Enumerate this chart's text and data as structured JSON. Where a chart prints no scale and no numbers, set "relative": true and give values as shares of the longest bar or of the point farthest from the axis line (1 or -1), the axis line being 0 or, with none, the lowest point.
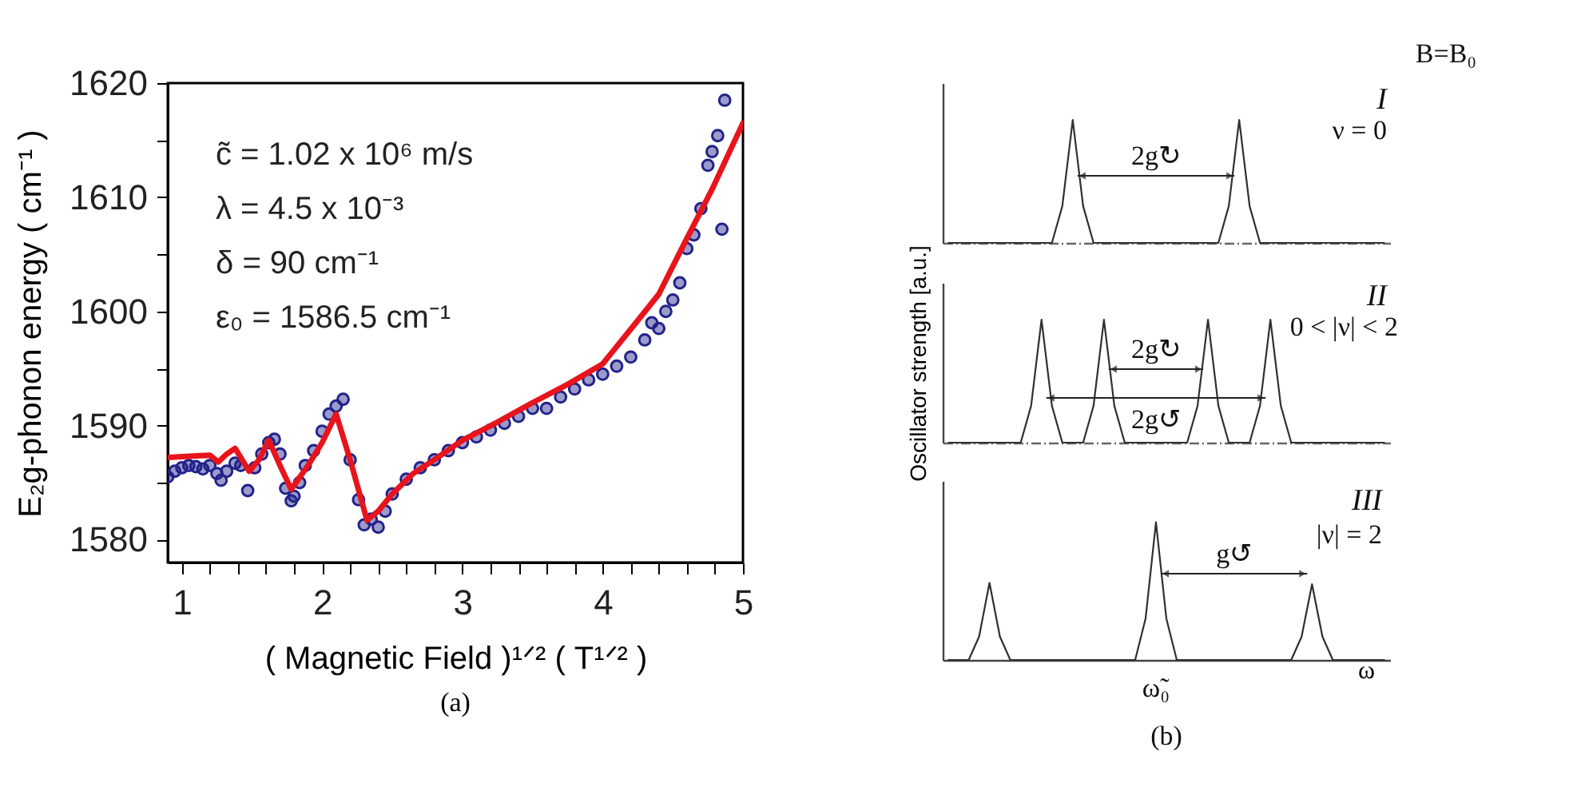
{
  "chart_data": [
    {
      "type": "scatter",
      "xlabel": "( Magnetic Field )¹ᐟ²  ( T¹ᐟ² )",
      "ylabel": "E₂g-phonon energy  ( cm⁻¹ )",
      "xlim": [
        0.9,
        5
      ],
      "ylim": [
        1578,
        1620
      ],
      "xticks": [
        1,
        {
          "value": 1.2,
          "label": null
        },
        {
          "value": 1.4,
          "label": null
        },
        {
          "value": 1.6,
          "label": null
        },
        {
          "value": 1.8,
          "label": null
        },
        2,
        {
          "value": 2.2,
          "label": null
        },
        {
          "value": 2.4,
          "label": null
        },
        {
          "value": 2.6,
          "label": null
        },
        {
          "value": 2.8,
          "label": null
        },
        3,
        {
          "value": 3.2,
          "label": null
        },
        {
          "value": 3.4,
          "label": null
        },
        {
          "value": 3.6,
          "label": null
        },
        {
          "value": 3.8,
          "label": null
        },
        4,
        {
          "value": 4.2,
          "label": null
        },
        {
          "value": 4.4,
          "label": null
        },
        {
          "value": 4.6,
          "label": null
        },
        {
          "value": 4.8,
          "label": null
        },
        5
      ],
      "yticks": [
        1580,
        {
          "value": 1585,
          "label": null
        },
        1590,
        {
          "value": 1595,
          "label": null
        },
        1600,
        {
          "value": 1605,
          "label": null
        },
        1610,
        {
          "value": 1615,
          "label": null
        },
        1620
      ],
      "grid": false,
      "series": [
        {
          "type": "scatter",
          "color": "#22228a",
          "marker": "circle",
          "x": [
            0.9,
            0.95,
            1.0,
            1.05,
            1.1,
            1.15,
            1.2,
            1.25,
            1.28,
            1.32,
            1.38,
            1.42,
            1.47,
            1.52,
            1.57,
            1.62,
            1.66,
            1.7,
            1.74,
            1.78,
            1.8,
            1.84,
            1.88,
            1.94,
            2.0,
            2.05,
            2.1,
            2.15,
            2.2,
            2.26,
            2.3,
            2.35,
            2.4,
            2.45,
            2.5,
            2.6,
            2.7,
            2.8,
            2.9,
            3.0,
            3.1,
            3.2,
            3.3,
            3.4,
            3.5,
            3.6,
            3.7,
            3.8,
            3.9,
            4.0,
            4.1,
            4.2,
            4.3,
            4.35,
            4.4,
            4.45,
            4.5,
            4.55,
            4.6,
            4.65,
            4.7,
            4.75,
            4.78,
            4.82,
            4.85,
            4.87
          ],
          "values": [
            1585.5,
            1586,
            1586.3,
            1586.5,
            1586.4,
            1586.2,
            1586.5,
            1585.8,
            1585.2,
            1586,
            1586.7,
            1586.5,
            1584.3,
            1586.3,
            1587.5,
            1588.5,
            1588.8,
            1587.5,
            1584.5,
            1583.4,
            1583.8,
            1585,
            1586.5,
            1587.8,
            1589.5,
            1591,
            1591.7,
            1592.3,
            1587,
            1583.5,
            1581.3,
            1581.8,
            1581.1,
            1582.5,
            1584,
            1585.3,
            1586.3,
            1587,
            1587.8,
            1588.5,
            1589,
            1589.6,
            1590.2,
            1590.8,
            1591.5,
            1591.5,
            1592.5,
            1593.2,
            1594,
            1594.5,
            1595.2,
            1596,
            1597.5,
            1599,
            1598.5,
            1600,
            1601,
            1602.5,
            1605.5,
            1606.7,
            1609,
            1612.8,
            1614,
            1615.4,
            1607.2,
            1618.5
          ]
        },
        {
          "type": "line",
          "color": "#e8141c",
          "x": [
            0.9,
            1.2,
            1.26,
            1.32,
            1.38,
            1.48,
            1.55,
            1.62,
            1.7,
            1.78,
            1.9,
            2.0,
            2.1,
            2.2,
            2.32,
            2.4,
            2.5,
            2.65,
            2.8,
            3.0,
            3.25,
            3.5,
            3.75,
            4.0,
            4.23,
            4.4,
            4.58,
            4.78,
            5.0
          ],
          "values": [
            1587.2,
            1587.4,
            1586.8,
            1587.5,
            1588,
            1586,
            1587,
            1588.7,
            1586.5,
            1584.4,
            1586.5,
            1588.5,
            1591,
            1587,
            1581.7,
            1582.5,
            1584,
            1585.8,
            1587,
            1588.7,
            1590.3,
            1592,
            1593.6,
            1595.4,
            1598.9,
            1601.5,
            1605.9,
            1610.7,
            1616.5
          ]
        }
      ],
      "annotations": [
        "c̃ = 1.02 x 10⁶ m/s",
        "λ = 4.5 x 10⁻³",
        "δ = 90 cm⁻¹",
        "ε₀ = 1586.5 cm⁻¹",
        "(a)"
      ]
    },
    {
      "type": "line",
      "relative": true,
      "grid": false,
      "categories": [
        null,
        null,
        null,
        null,
        null,
        null,
        null,
        null,
        null,
        null,
        null,
        null,
        null,
        null,
        null,
        null,
        null,
        null,
        null,
        null,
        null,
        null,
        null,
        null,
        null,
        null,
        null,
        null,
        null,
        null,
        null,
        null,
        null,
        null,
        null,
        null,
        null,
        null,
        null,
        null,
        null,
        null,
        null
      ],
      "series": [
        {
          "color": "#303030",
          "values": [
            0,
            0,
            0,
            0,
            0,
            0,
            0,
            0,
            0,
            0,
            0,
            0.3,
            1,
            0.3,
            0,
            0,
            0,
            0,
            0,
            0,
            0,
            0,
            0,
            0,
            0,
            0,
            0,
            0.3,
            1,
            0.3,
            0,
            0,
            0,
            0,
            0,
            0,
            0,
            0,
            0,
            0,
            0,
            0,
            0
          ]
        }
      ],
      "annotations": [
        "I",
        "ν = 0",
        "2g↻",
        "B=B₀"
      ]
    },
    {
      "type": "line",
      "relative": true,
      "grid": false,
      "ylabel": "Oscillator strength [a.u.]",
      "categories": [
        null,
        null,
        null,
        null,
        null,
        null,
        null,
        null,
        null,
        null,
        null,
        null,
        null,
        null,
        null,
        null,
        null,
        null,
        null,
        null,
        null,
        null,
        null,
        null,
        null,
        null,
        null,
        null,
        null,
        null,
        null,
        null,
        null,
        null,
        null,
        null,
        null,
        null,
        null,
        null,
        null,
        null,
        null
      ],
      "series": [
        {
          "color": "#303030",
          "values": [
            0,
            0,
            0,
            0,
            0,
            0,
            0,
            0,
            0.3,
            1,
            0.3,
            0,
            0,
            0,
            0.3,
            1,
            0.3,
            0,
            0,
            0,
            0,
            0,
            0,
            0,
            0.3,
            1,
            0.3,
            0,
            0,
            0,
            0.3,
            1,
            0.3,
            0,
            0,
            0,
            0,
            0,
            0,
            0,
            0,
            0,
            0
          ]
        }
      ],
      "annotations": [
        "II",
        "0 < |ν| < 2",
        "2g↻",
        "2g↺"
      ]
    },
    {
      "type": "line",
      "relative": true,
      "grid": false,
      "xlabel": "ω",
      "categories": [
        null,
        null,
        null,
        null,
        null,
        null,
        null,
        null,
        null,
        null,
        null,
        null,
        null,
        null,
        null,
        null,
        null,
        null,
        null,
        null,
        null,
        null,
        null,
        null,
        null,
        null,
        null,
        null,
        null,
        null,
        null,
        null,
        null,
        null,
        null,
        null,
        null,
        null,
        null,
        null,
        null,
        null,
        null
      ],
      "series": [
        {
          "color": "#303030",
          "values": [
            0,
            0,
            0,
            0.17,
            0.56,
            0.17,
            0,
            0,
            0,
            0,
            0,
            0,
            0,
            0,
            0,
            0,
            0,
            0,
            0,
            0.3,
            1,
            0.3,
            0,
            0,
            0,
            0,
            0,
            0,
            0,
            0,
            0,
            0,
            0,
            0,
            0.17,
            0.55,
            0.17,
            0,
            0,
            0,
            0,
            0,
            0
          ]
        }
      ],
      "annotations": [
        "III",
        "|ν| = 2",
        "g↺",
        "ω̃₀",
        "(b)"
      ]
    }
  ]
}
